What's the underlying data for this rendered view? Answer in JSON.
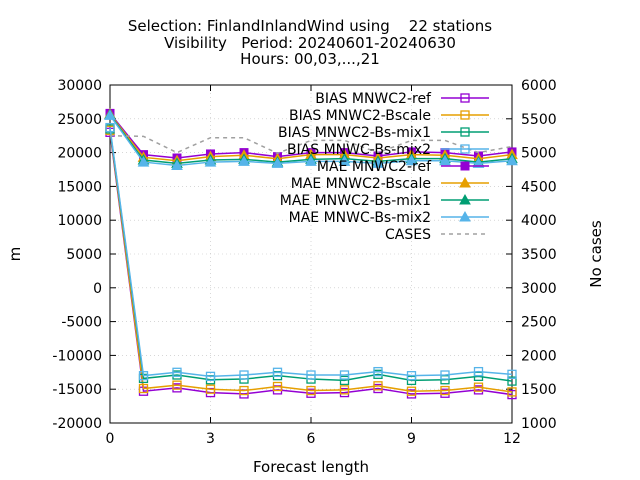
{
  "chart_data": {
    "type": "line",
    "title_lines": [
      "Selection: FinlandInlandWind using    22 stations",
      "Visibility   Period: 20240601-20240630",
      "Hours: 00,03,...,21"
    ],
    "xlabel": "Forecast length",
    "ylabel": "m",
    "y2label": "No cases",
    "xlim": [
      0,
      12
    ],
    "ylim": [
      -20000,
      30000
    ],
    "y2lim": [
      1000,
      6000
    ],
    "xticks": [
      0,
      3,
      6,
      9,
      12
    ],
    "yticks": [
      -20000,
      -15000,
      -10000,
      -5000,
      0,
      5000,
      10000,
      15000,
      20000,
      25000,
      30000
    ],
    "y2ticks": [
      1000,
      1500,
      2000,
      2500,
      3000,
      3500,
      4000,
      4500,
      5000,
      5500,
      6000
    ],
    "legend_position": "top-right",
    "x": [
      0,
      1,
      2,
      3,
      4,
      5,
      6,
      7,
      8,
      9,
      10,
      11,
      12
    ],
    "series": [
      {
        "name": "BIAS MNWC2-ref",
        "color": "#9400d3",
        "marker": "open-square",
        "axis": "y",
        "values": [
          23000,
          -15300,
          -14800,
          -15500,
          -15700,
          -15100,
          -15600,
          -15500,
          -14900,
          -15700,
          -15600,
          -15100,
          -15800
        ]
      },
      {
        "name": "BIAS MNWC2-Bscale",
        "color": "#e69f00",
        "marker": "open-square",
        "axis": "y",
        "values": [
          23300,
          -14900,
          -14400,
          -15000,
          -15200,
          -14600,
          -15200,
          -15100,
          -14500,
          -15300,
          -15200,
          -14700,
          -15400
        ]
      },
      {
        "name": "BIAS MNWC2-Bs-mix1",
        "color": "#009e73",
        "marker": "open-square",
        "axis": "y",
        "values": [
          23500,
          -13400,
          -12900,
          -13600,
          -13500,
          -13000,
          -13500,
          -13700,
          -12800,
          -13700,
          -13600,
          -13100,
          -13800
        ]
      },
      {
        "name": "BIAS MNWC-Bs-mix2",
        "color": "#56b4e9",
        "marker": "open-square",
        "axis": "y",
        "values": [
          23700,
          -13000,
          -12500,
          -13100,
          -12900,
          -12500,
          -12900,
          -12900,
          -12400,
          -13000,
          -12900,
          -12400,
          -12800
        ]
      },
      {
        "name": "MAE MNWC2-ref",
        "color": "#9400d3",
        "marker": "filled-square",
        "axis": "y",
        "values": [
          25800,
          19700,
          19200,
          19800,
          20000,
          19400,
          20000,
          20000,
          19500,
          20100,
          20000,
          19500,
          20100
        ]
      },
      {
        "name": "MAE MNWC2-Bscale",
        "color": "#e69f00",
        "marker": "filled-triangle",
        "axis": "y",
        "values": [
          25700,
          19300,
          18800,
          19400,
          19600,
          19100,
          19700,
          19700,
          19200,
          19700,
          19600,
          19100,
          19700
        ]
      },
      {
        "name": "MAE MNWC2-Bs-mix1",
        "color": "#009e73",
        "marker": "filled-triangle",
        "axis": "y",
        "values": [
          25600,
          18900,
          18400,
          18900,
          19000,
          18600,
          19000,
          19100,
          18700,
          19100,
          19100,
          18600,
          19100
        ]
      },
      {
        "name": "MAE MNWC-Bs-mix2",
        "color": "#56b4e9",
        "marker": "filled-triangle",
        "axis": "y",
        "values": [
          25500,
          18600,
          18100,
          18600,
          18700,
          18400,
          18700,
          18700,
          18400,
          18800,
          18800,
          18400,
          18800
        ]
      },
      {
        "name": "CASES",
        "color": "#a0a0a0",
        "marker": "none",
        "dash": true,
        "axis": "y2",
        "values": [
          5250,
          5240,
          5000,
          5220,
          5220,
          4990,
          5180,
          5180,
          5000,
          5180,
          5180,
          5000,
          5090
        ]
      }
    ]
  }
}
